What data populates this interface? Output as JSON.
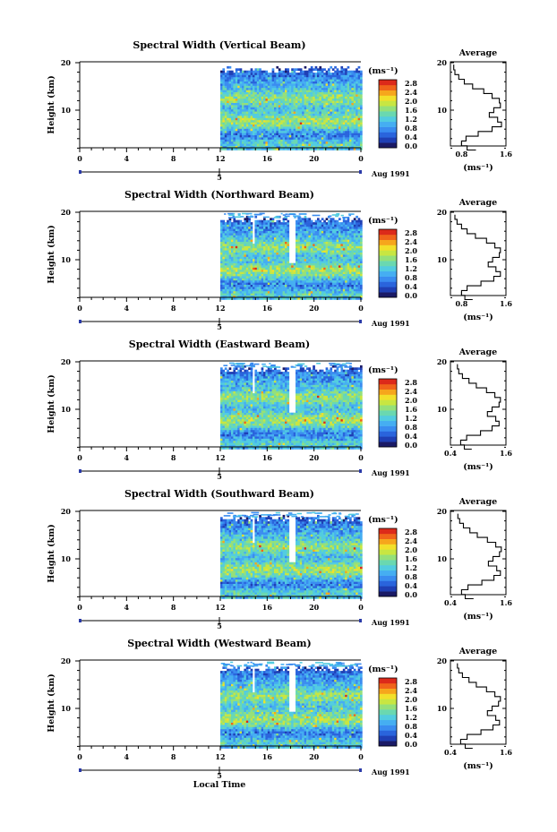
{
  "colors": {
    "colorbar": [
      "#1a1a66",
      "#1f3fb4",
      "#2a64dc",
      "#3a8cf0",
      "#45aef2",
      "#52cce0",
      "#6ad8b0",
      "#94e07a",
      "#c8e642",
      "#f2e02a",
      "#f6a61c",
      "#f0641a",
      "#dc2a1a"
    ]
  },
  "footer": {
    "xlabel": "Local Time"
  },
  "chart_data": [
    {
      "type": "heatmap",
      "title": "Spectral Width (Vertical Beam)",
      "ylabel": "Height (km)",
      "x_ticks": [
        "0",
        "4",
        "8",
        "12",
        "16",
        "20",
        "0"
      ],
      "x_range": [
        0,
        24
      ],
      "y_ticks": [
        "20",
        "10"
      ],
      "y_range": [
        1.5,
        20
      ],
      "date_marker": "5",
      "date_label": "Aug 1991",
      "colorbar_unit": "(ms⁻¹)",
      "colorbar_ticks": [
        "2.8",
        "2.4",
        "2.0",
        "1.6",
        "1.2",
        "0.8",
        "0.4",
        "0.0"
      ],
      "data_start_hour": 12,
      "gaps": [],
      "average": {
        "title": "Average",
        "xlabel": "(ms⁻¹)",
        "x_ticks": [
          "0.8",
          "1.6"
        ],
        "x_range": [
          0.6,
          1.6
        ],
        "y_ticks": [
          "20",
          "10"
        ],
        "profile": [
          [
            1.6,
            1.06
          ],
          [
            2.5,
            0.9
          ],
          [
            3.5,
            0.8
          ],
          [
            4.5,
            0.88
          ],
          [
            5.5,
            1.1
          ],
          [
            6.5,
            1.35
          ],
          [
            7.5,
            1.52
          ],
          [
            8.5,
            1.45
          ],
          [
            9.5,
            1.3
          ],
          [
            10.5,
            1.38
          ],
          [
            11.5,
            1.5
          ],
          [
            12.5,
            1.48
          ],
          [
            13.5,
            1.35
          ],
          [
            14.5,
            1.2
          ],
          [
            15.5,
            1.0
          ],
          [
            16.5,
            0.85
          ],
          [
            17.5,
            0.75
          ],
          [
            18.5,
            0.68
          ],
          [
            19.6,
            0.66
          ]
        ]
      }
    },
    {
      "type": "heatmap",
      "title": "Spectral Width (Northward Beam)",
      "ylabel": "Height (km)",
      "x_ticks": [
        "0",
        "4",
        "8",
        "12",
        "16",
        "20",
        "0"
      ],
      "x_range": [
        0,
        24
      ],
      "y_ticks": [
        "20",
        "10"
      ],
      "y_range": [
        1.5,
        20
      ],
      "date_marker": "5",
      "date_label": "Aug 1991",
      "colorbar_unit": "(ms⁻¹)",
      "colorbar_ticks": [
        "2.8",
        "2.4",
        "2.0",
        "1.6",
        "1.2",
        "0.8",
        "0.4",
        "0.0"
      ],
      "data_start_hour": 12,
      "gaps": [
        [
          14.6,
          14.9,
          13,
          20
        ],
        [
          17.8,
          18.3,
          9,
          20
        ]
      ],
      "average": {
        "title": "Average",
        "xlabel": "(ms⁻¹)",
        "x_ticks": [
          "0.8",
          "1.6"
        ],
        "x_range": [
          0.6,
          1.6
        ],
        "y_ticks": [
          "20",
          "10"
        ],
        "profile": [
          [
            1.6,
            1.0
          ],
          [
            2.5,
            0.86
          ],
          [
            3.5,
            0.8
          ],
          [
            4.5,
            0.9
          ],
          [
            5.5,
            1.15
          ],
          [
            6.5,
            1.38
          ],
          [
            7.5,
            1.5
          ],
          [
            8.5,
            1.42
          ],
          [
            9.5,
            1.28
          ],
          [
            10.5,
            1.36
          ],
          [
            11.5,
            1.48
          ],
          [
            12.5,
            1.5
          ],
          [
            13.5,
            1.4
          ],
          [
            14.5,
            1.25
          ],
          [
            15.5,
            1.05
          ],
          [
            16.5,
            0.9
          ],
          [
            17.5,
            0.8
          ],
          [
            18.5,
            0.72
          ],
          [
            19.5,
            0.68
          ]
        ]
      }
    },
    {
      "type": "heatmap",
      "title": "Spectral Width (Eastward Beam)",
      "ylabel": "Height (km)",
      "x_ticks": [
        "0",
        "4",
        "8",
        "12",
        "16",
        "20",
        "0"
      ],
      "x_range": [
        0,
        24
      ],
      "y_ticks": [
        "20",
        "10"
      ],
      "y_range": [
        1.5,
        20
      ],
      "date_marker": "5",
      "date_label": "Aug 1991",
      "colorbar_unit": "(ms⁻¹)",
      "colorbar_ticks": [
        "2.8",
        "2.4",
        "2.0",
        "1.6",
        "1.2",
        "0.8",
        "0.4",
        "0.0"
      ],
      "data_start_hour": 12,
      "gaps": [
        [
          14.6,
          14.9,
          13,
          20
        ],
        [
          17.8,
          18.3,
          9,
          20
        ]
      ],
      "average": {
        "title": "Average",
        "xlabel": "(ms⁻¹)",
        "x_ticks": [
          "0.4",
          "1.6"
        ],
        "x_range": [
          0.4,
          1.6
        ],
        "y_ticks": [
          "20",
          "10"
        ],
        "profile": [
          [
            1.6,
            0.86
          ],
          [
            2.5,
            0.7
          ],
          [
            3.5,
            0.62
          ],
          [
            4.5,
            0.75
          ],
          [
            5.5,
            1.05
          ],
          [
            6.5,
            1.3
          ],
          [
            7.5,
            1.45
          ],
          [
            8.5,
            1.38
          ],
          [
            9.5,
            1.2
          ],
          [
            10.5,
            1.3
          ],
          [
            11.5,
            1.45
          ],
          [
            12.5,
            1.48
          ],
          [
            13.5,
            1.36
          ],
          [
            14.5,
            1.18
          ],
          [
            15.5,
            0.96
          ],
          [
            16.5,
            0.8
          ],
          [
            17.5,
            0.66
          ],
          [
            18.5,
            0.58
          ],
          [
            19.5,
            0.55
          ]
        ]
      }
    },
    {
      "type": "heatmap",
      "title": "Spectral Width (Southward Beam)",
      "ylabel": "Height (km)",
      "x_ticks": [
        "0",
        "4",
        "8",
        "12",
        "16",
        "20",
        "0"
      ],
      "x_range": [
        0,
        24
      ],
      "y_ticks": [
        "20",
        "10"
      ],
      "y_range": [
        1.5,
        20
      ],
      "date_marker": "5",
      "date_label": "Aug 1991",
      "colorbar_unit": "(ms⁻¹)",
      "colorbar_ticks": [
        "2.8",
        "2.4",
        "2.0",
        "1.6",
        "1.2",
        "0.8",
        "0.4",
        "0.0"
      ],
      "data_start_hour": 12,
      "gaps": [
        [
          14.6,
          14.9,
          13,
          20
        ],
        [
          17.8,
          18.3,
          9,
          20
        ]
      ],
      "average": {
        "title": "Average",
        "xlabel": "(ms⁻¹)",
        "x_ticks": [
          "0.4",
          "1.6"
        ],
        "x_range": [
          0.4,
          1.6
        ],
        "y_ticks": [
          "20",
          "10"
        ],
        "profile": [
          [
            1.6,
            0.9
          ],
          [
            2.5,
            0.72
          ],
          [
            3.5,
            0.64
          ],
          [
            4.5,
            0.78
          ],
          [
            5.5,
            1.08
          ],
          [
            6.5,
            1.34
          ],
          [
            7.5,
            1.48
          ],
          [
            8.5,
            1.4
          ],
          [
            9.5,
            1.22
          ],
          [
            10.5,
            1.32
          ],
          [
            11.5,
            1.46
          ],
          [
            12.5,
            1.5
          ],
          [
            13.5,
            1.38
          ],
          [
            14.5,
            1.2
          ],
          [
            15.5,
            0.98
          ],
          [
            16.5,
            0.82
          ],
          [
            17.5,
            0.68
          ],
          [
            18.5,
            0.6
          ],
          [
            19.5,
            0.56
          ]
        ]
      }
    },
    {
      "type": "heatmap",
      "title": "Spectral Width (Westward Beam)",
      "ylabel": "Height (km)",
      "x_ticks": [
        "0",
        "4",
        "8",
        "12",
        "16",
        "20",
        "0"
      ],
      "x_range": [
        0,
        24
      ],
      "y_ticks": [
        "20",
        "10"
      ],
      "y_range": [
        1.5,
        20
      ],
      "date_marker": "5",
      "date_label": "Aug 1991",
      "colorbar_unit": "(ms⁻¹)",
      "colorbar_ticks": [
        "2.8",
        "2.4",
        "2.0",
        "1.6",
        "1.2",
        "0.8",
        "0.4",
        "0.0"
      ],
      "data_start_hour": 12,
      "gaps": [
        [
          14.6,
          14.9,
          13,
          20
        ],
        [
          17.8,
          18.3,
          9,
          20
        ]
      ],
      "average": {
        "title": "Average",
        "xlabel": "(ms⁻¹)",
        "x_ticks": [
          "0.4",
          "1.6"
        ],
        "x_range": [
          0.4,
          1.6
        ],
        "y_ticks": [
          "20",
          "10"
        ],
        "profile": [
          [
            1.6,
            0.88
          ],
          [
            2.5,
            0.72
          ],
          [
            3.5,
            0.62
          ],
          [
            4.5,
            0.76
          ],
          [
            5.5,
            1.06
          ],
          [
            6.5,
            1.32
          ],
          [
            7.5,
            1.46
          ],
          [
            8.5,
            1.38
          ],
          [
            9.5,
            1.2
          ],
          [
            10.5,
            1.3
          ],
          [
            11.5,
            1.44
          ],
          [
            12.5,
            1.48
          ],
          [
            13.5,
            1.36
          ],
          [
            14.5,
            1.18
          ],
          [
            15.5,
            0.96
          ],
          [
            16.5,
            0.8
          ],
          [
            17.5,
            0.66
          ],
          [
            18.5,
            0.58
          ],
          [
            19.5,
            0.55
          ]
        ]
      }
    }
  ]
}
